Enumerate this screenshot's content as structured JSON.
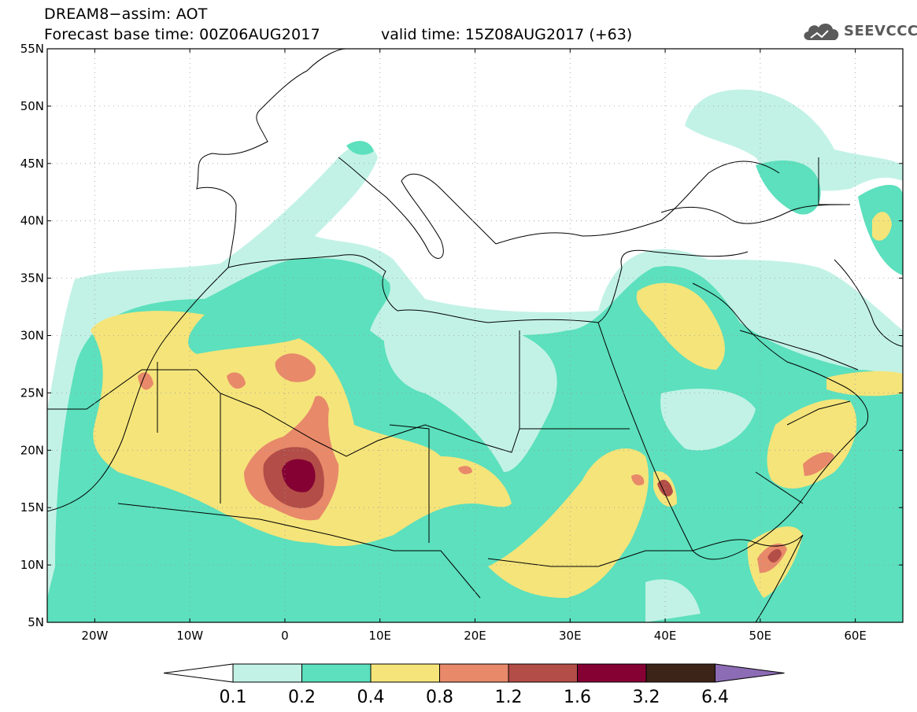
{
  "header": {
    "model": "DREAM8−assim: AOT",
    "base_time": "Forecast base time: 00Z06AUG2017",
    "valid_time": "valid time: 15Z08AUG2017 (+63)"
  },
  "logo": {
    "text": "SEEVCCC",
    "icon": "cloud-icon"
  },
  "map": {
    "lon_range": [
      -25,
      65
    ],
    "lat_range": [
      5,
      55
    ],
    "lat_ticks": [
      "5N",
      "10N",
      "15N",
      "20N",
      "25N",
      "30N",
      "35N",
      "40N",
      "45N",
      "50N",
      "55N"
    ],
    "lon_ticks": [
      "20W",
      "10W",
      "0",
      "10E",
      "20E",
      "30E",
      "40E",
      "50E",
      "60E"
    ],
    "grid": "dotted"
  },
  "colorbar": {
    "levels": [
      "0.1",
      "0.2",
      "0.4",
      "0.8",
      "1.2",
      "1.6",
      "3.2",
      "6.4"
    ],
    "colors": [
      "#ffffff",
      "#c2f2e6",
      "#5ce0bd",
      "#f5e47a",
      "#e8896a",
      "#b34d47",
      "#850033",
      "#3d2418",
      "#8c6cb5"
    ]
  }
}
